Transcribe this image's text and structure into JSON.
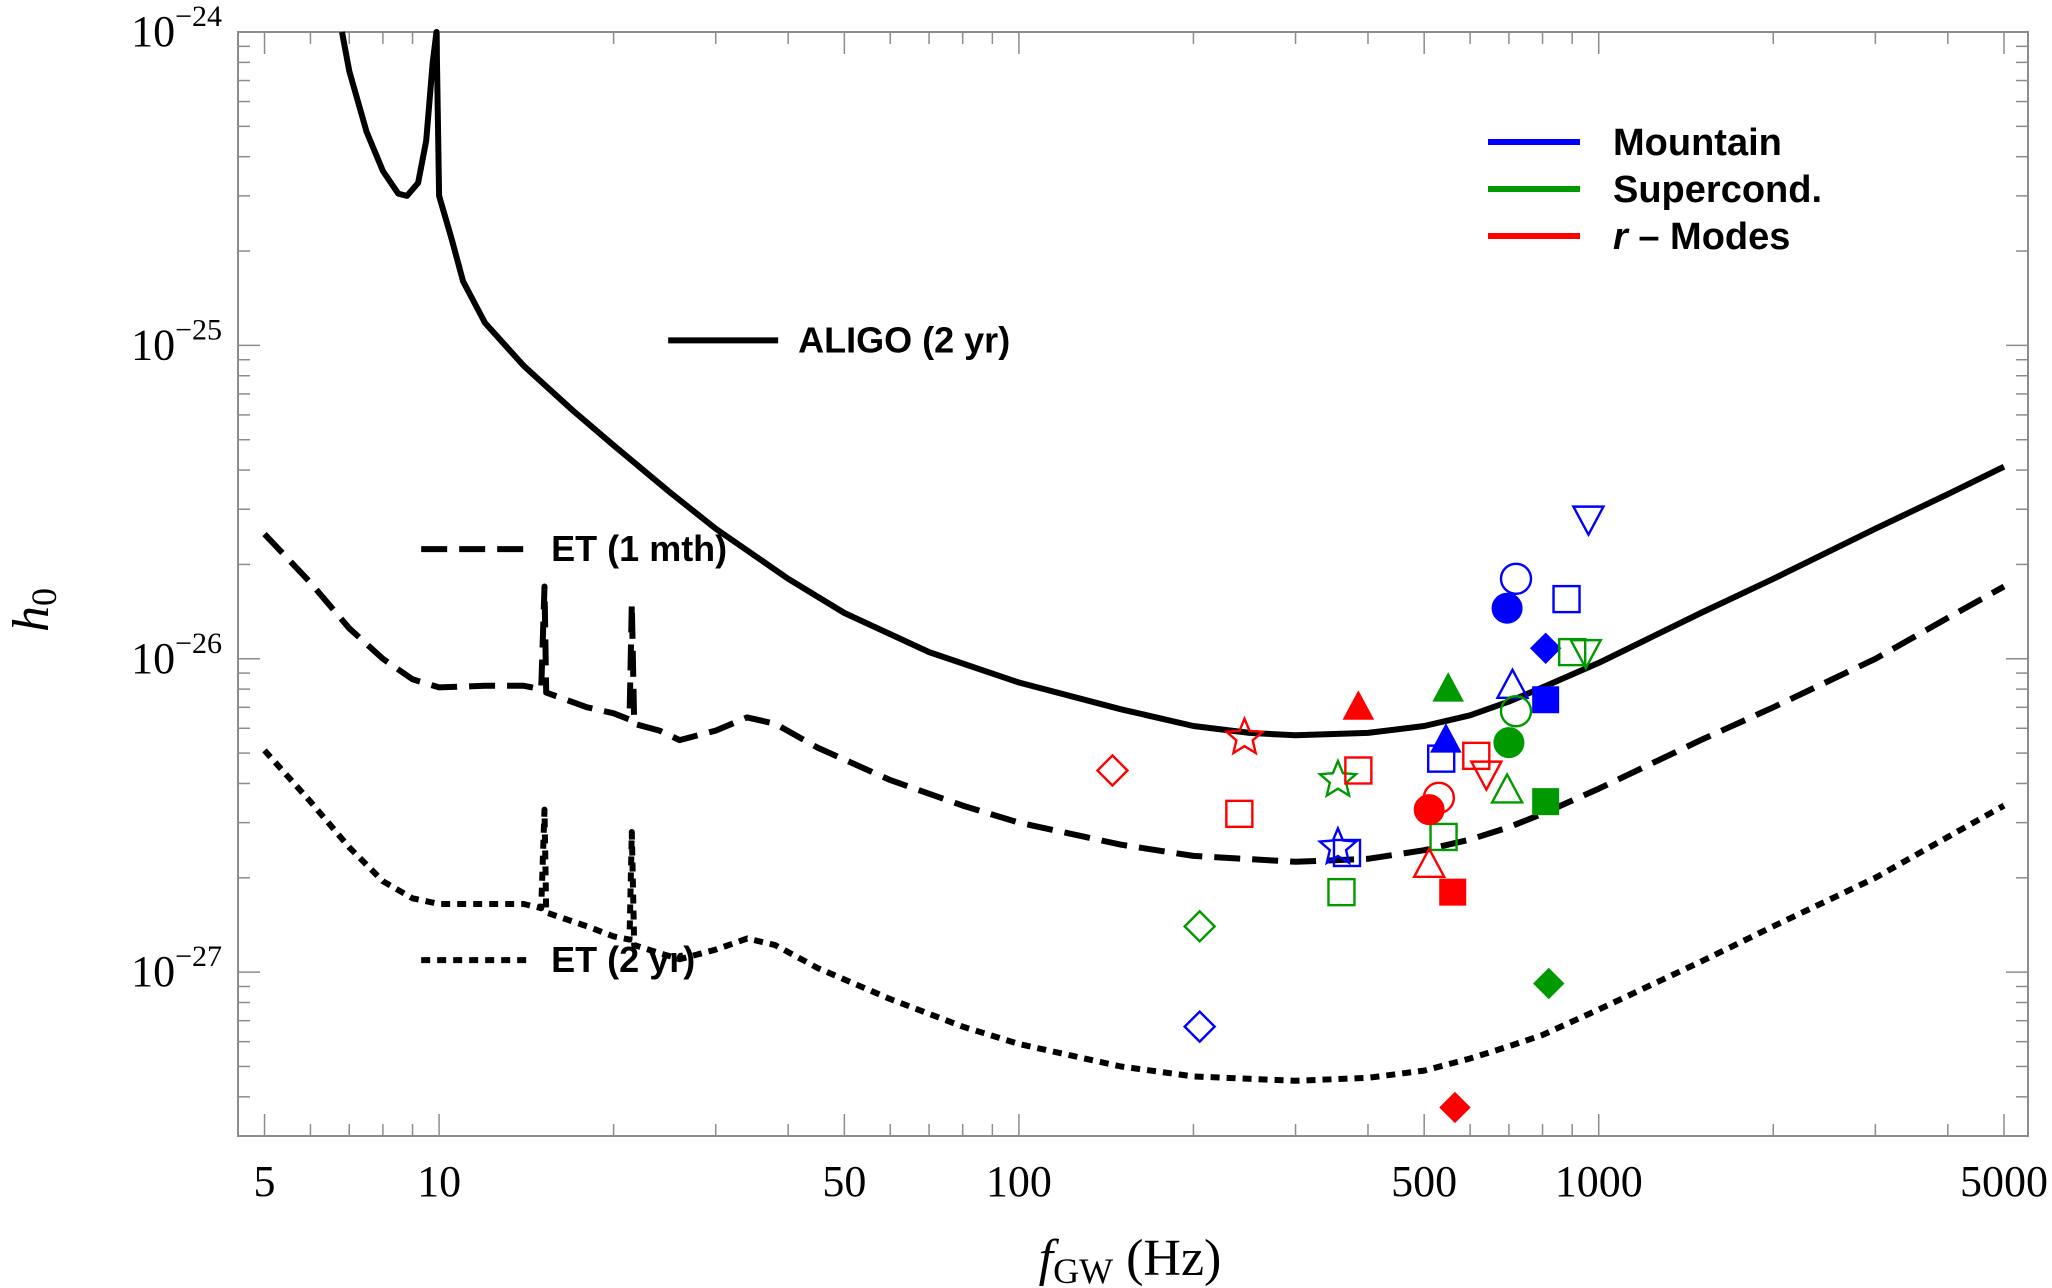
{
  "chart_data": {
    "type": "scatter",
    "title": "",
    "xlabel": "f",
    "xlabel_subscript": "GW",
    "xlabel_unit": " (Hz)",
    "ylabel": "h",
    "ylabel_subscript": "0",
    "xscale": "log",
    "yscale": "log",
    "xlim": [
      4.5,
      5500
    ],
    "ylim": [
      3e-28,
      1e-24
    ],
    "x_ticks": [
      {
        "value": 5,
        "label": "5"
      },
      {
        "value": 10,
        "label": "10"
      },
      {
        "value": 50,
        "label": "50"
      },
      {
        "value": 100,
        "label": "100"
      },
      {
        "value": 500,
        "label": "500"
      },
      {
        "value": 1000,
        "label": "1000"
      },
      {
        "value": 5000,
        "label": "5000"
      }
    ],
    "y_ticks": [
      {
        "value": 1e-27,
        "mantissa": "10",
        "exponent": "−27"
      },
      {
        "value": 1e-26,
        "mantissa": "10",
        "exponent": "−26"
      },
      {
        "value": 1e-25,
        "mantissa": "10",
        "exponent": "−25"
      },
      {
        "value": 1e-24,
        "mantissa": "10",
        "exponent": "−24"
      }
    ],
    "colors": {
      "mountain": "#0000ff",
      "supercond": "#009900",
      "rmodes": "#ff0000",
      "curve": "#000000"
    },
    "legend": {
      "position": "top-right",
      "items": [
        {
          "label": "Mountain",
          "color": "#0000ff"
        },
        {
          "label": "Supercond.",
          "color": "#009900"
        },
        {
          "label": "r",
          "suffix": " – Modes",
          "color": "#ff0000"
        }
      ]
    },
    "curve_labels": [
      {
        "id": "aligo",
        "text": "ALIGO (2 yr)",
        "x": 40,
        "y": 9.5e-26
      },
      {
        "id": "et1",
        "text": "ET (1 mth)",
        "x": 15,
        "y": 2.05e-26
      },
      {
        "id": "et2",
        "text": "ET (2 yr)",
        "x": 15,
        "y": 1e-27
      }
    ],
    "series": [
      {
        "name": "ALIGO (2 yr)",
        "style": "solid",
        "points": [
          [
            6.8,
            1e-24
          ],
          [
            7,
            7.5e-25
          ],
          [
            7.5,
            4.8e-25
          ],
          [
            8,
            3.6e-25
          ],
          [
            8.5,
            3.05e-25
          ],
          [
            8.8,
            3e-25
          ],
          [
            9.2,
            3.3e-25
          ],
          [
            9.5,
            4.5e-25
          ],
          [
            9.75,
            8e-25
          ],
          [
            9.9,
            1e-24
          ],
          [
            10,
            3e-25
          ],
          [
            10.5,
            2.2e-25
          ],
          [
            11,
            1.6e-25
          ],
          [
            12,
            1.18e-25
          ],
          [
            14,
            8.6e-26
          ],
          [
            17,
            6.2e-26
          ],
          [
            20,
            4.8e-26
          ],
          [
            25,
            3.4e-26
          ],
          [
            30,
            2.6e-26
          ],
          [
            40,
            1.8e-26
          ],
          [
            50,
            1.4e-26
          ],
          [
            70,
            1.05e-26
          ],
          [
            100,
            8.4e-27
          ],
          [
            150,
            6.9e-27
          ],
          [
            200,
            6.1e-27
          ],
          [
            250,
            5.8e-27
          ],
          [
            300,
            5.7e-27
          ],
          [
            400,
            5.8e-27
          ],
          [
            500,
            6.1e-27
          ],
          [
            600,
            6.6e-27
          ],
          [
            700,
            7.3e-27
          ],
          [
            800,
            8.1e-27
          ],
          [
            1000,
            9.7e-27
          ],
          [
            1500,
            1.4e-26
          ],
          [
            2000,
            1.8e-26
          ],
          [
            3000,
            2.6e-26
          ],
          [
            4000,
            3.35e-26
          ],
          [
            5000,
            4.1e-26
          ]
        ]
      },
      {
        "name": "ET (1 mth)",
        "style": "dashed",
        "points": [
          [
            5,
            2.5e-26
          ],
          [
            6,
            1.75e-26
          ],
          [
            7,
            1.25e-26
          ],
          [
            8,
            1e-26
          ],
          [
            9,
            8.6e-27
          ],
          [
            10,
            8.1e-27
          ],
          [
            12,
            8.2e-27
          ],
          [
            14,
            8.2e-27
          ],
          [
            15,
            8e-27
          ],
          [
            15.2,
            1.7e-26
          ],
          [
            15.3,
            7.8e-27
          ],
          [
            18,
            7e-27
          ],
          [
            20,
            6.7e-27
          ],
          [
            21.3,
            6.4e-27
          ],
          [
            21.5,
            1.5e-26
          ],
          [
            21.7,
            6.2e-27
          ],
          [
            24,
            5.9e-27
          ],
          [
            26,
            5.5e-27
          ],
          [
            30,
            5.9e-27
          ],
          [
            34,
            6.5e-27
          ],
          [
            38,
            6.2e-27
          ],
          [
            45,
            5.2e-27
          ],
          [
            60,
            4.1e-27
          ],
          [
            80,
            3.4e-27
          ],
          [
            100,
            3e-27
          ],
          [
            150,
            2.55e-27
          ],
          [
            200,
            2.35e-27
          ],
          [
            300,
            2.25e-27
          ],
          [
            400,
            2.3e-27
          ],
          [
            500,
            2.45e-27
          ],
          [
            600,
            2.65e-27
          ],
          [
            700,
            2.9e-27
          ],
          [
            800,
            3.2e-27
          ],
          [
            1000,
            3.85e-27
          ],
          [
            1500,
            5.5e-27
          ],
          [
            2000,
            7e-27
          ],
          [
            3000,
            1e-26
          ],
          [
            4000,
            1.35e-26
          ],
          [
            5000,
            1.7e-26
          ]
        ]
      },
      {
        "name": "ET (2 yr)",
        "style": "dotted",
        "points": [
          [
            5,
            5.1e-27
          ],
          [
            6,
            3.5e-27
          ],
          [
            7,
            2.5e-27
          ],
          [
            8,
            1.95e-27
          ],
          [
            9,
            1.72e-27
          ],
          [
            10,
            1.65e-27
          ],
          [
            12,
            1.65e-27
          ],
          [
            14,
            1.65e-27
          ],
          [
            15,
            1.6e-27
          ],
          [
            15.2,
            3.3e-27
          ],
          [
            15.3,
            1.55e-27
          ],
          [
            18,
            1.4e-27
          ],
          [
            20,
            1.3e-27
          ],
          [
            21.3,
            1.27e-27
          ],
          [
            21.5,
            2.8e-27
          ],
          [
            21.7,
            1.22e-27
          ],
          [
            24,
            1.15e-27
          ],
          [
            26,
            1.1e-27
          ],
          [
            30,
            1.18e-27
          ],
          [
            34,
            1.28e-27
          ],
          [
            38,
            1.22e-27
          ],
          [
            45,
            1.03e-27
          ],
          [
            60,
            8.2e-28
          ],
          [
            80,
            6.7e-28
          ],
          [
            100,
            5.9e-28
          ],
          [
            150,
            5e-28
          ],
          [
            200,
            4.65e-28
          ],
          [
            300,
            4.5e-28
          ],
          [
            400,
            4.6e-28
          ],
          [
            500,
            4.85e-28
          ],
          [
            600,
            5.3e-28
          ],
          [
            700,
            5.8e-28
          ],
          [
            800,
            6.3e-28
          ],
          [
            1000,
            7.6e-28
          ],
          [
            1500,
            1.08e-27
          ],
          [
            2000,
            1.4e-27
          ],
          [
            3000,
            2e-27
          ],
          [
            4000,
            2.7e-27
          ],
          [
            5000,
            3.4e-27
          ]
        ]
      }
    ],
    "markers": [
      {
        "group": "mountain",
        "shape": "circle",
        "filled": false,
        "x": 720,
        "y": 1.8e-26
      },
      {
        "group": "mountain",
        "shape": "circle",
        "filled": true,
        "x": 695,
        "y": 1.45e-26
      },
      {
        "group": "mountain",
        "shape": "square",
        "filled": false,
        "x": 880,
        "y": 1.55e-26
      },
      {
        "group": "mountain",
        "shape": "tri-down",
        "filled": false,
        "x": 960,
        "y": 2.8e-26
      },
      {
        "group": "mountain",
        "shape": "diamond",
        "filled": true,
        "x": 810,
        "y": 1.08e-26
      },
      {
        "group": "mountain",
        "shape": "tri-up",
        "filled": false,
        "x": 710,
        "y": 8.2e-27
      },
      {
        "group": "mountain",
        "shape": "square",
        "filled": true,
        "x": 810,
        "y": 7.4e-27
      },
      {
        "group": "mountain",
        "shape": "tri-up",
        "filled": true,
        "x": 545,
        "y": 5.5e-27
      },
      {
        "group": "mountain",
        "shape": "square",
        "filled": false,
        "x": 535,
        "y": 4.8e-27
      },
      {
        "group": "mountain",
        "shape": "star",
        "filled": false,
        "x": 355,
        "y": 2.5e-27
      },
      {
        "group": "mountain",
        "shape": "square",
        "filled": false,
        "x": 368,
        "y": 2.4e-27
      },
      {
        "group": "mountain",
        "shape": "diamond",
        "filled": false,
        "x": 205,
        "y": 6.7e-28
      },
      {
        "group": "supercond",
        "shape": "tri-up",
        "filled": true,
        "x": 550,
        "y": 8e-27
      },
      {
        "group": "supercond",
        "shape": "circle",
        "filled": false,
        "x": 720,
        "y": 6.8e-27
      },
      {
        "group": "supercond",
        "shape": "circle",
        "filled": true,
        "x": 700,
        "y": 5.4e-27
      },
      {
        "group": "supercond",
        "shape": "tri-up",
        "filled": false,
        "x": 695,
        "y": 3.8e-27
      },
      {
        "group": "supercond",
        "shape": "square",
        "filled": true,
        "x": 810,
        "y": 3.5e-27
      },
      {
        "group": "supercond",
        "shape": "square",
        "filled": false,
        "x": 900,
        "y": 1.05e-26
      },
      {
        "group": "supercond",
        "shape": "tri-down",
        "filled": false,
        "x": 950,
        "y": 1.05e-26
      },
      {
        "group": "supercond",
        "shape": "star",
        "filled": false,
        "x": 355,
        "y": 4.1e-27
      },
      {
        "group": "supercond",
        "shape": "square",
        "filled": false,
        "x": 540,
        "y": 2.7e-27
      },
      {
        "group": "supercond",
        "shape": "square",
        "filled": false,
        "x": 360,
        "y": 1.8e-27
      },
      {
        "group": "supercond",
        "shape": "diamond",
        "filled": false,
        "x": 205,
        "y": 1.4e-27
      },
      {
        "group": "supercond",
        "shape": "diamond",
        "filled": true,
        "x": 820,
        "y": 9.2e-28
      },
      {
        "group": "rmodes",
        "shape": "tri-up",
        "filled": true,
        "x": 385,
        "y": 7e-27
      },
      {
        "group": "rmodes",
        "shape": "star",
        "filled": false,
        "x": 245,
        "y": 5.6e-27
      },
      {
        "group": "rmodes",
        "shape": "square",
        "filled": false,
        "x": 385,
        "y": 4.4e-27
      },
      {
        "group": "rmodes",
        "shape": "diamond",
        "filled": false,
        "x": 145,
        "y": 4.4e-27
      },
      {
        "group": "rmodes",
        "shape": "square",
        "filled": false,
        "x": 615,
        "y": 4.9e-27
      },
      {
        "group": "rmodes",
        "shape": "tri-down",
        "filled": false,
        "x": 640,
        "y": 4.3e-27
      },
      {
        "group": "rmodes",
        "shape": "circle",
        "filled": false,
        "x": 530,
        "y": 3.6e-27
      },
      {
        "group": "rmodes",
        "shape": "circle",
        "filled": true,
        "x": 510,
        "y": 3.3e-27
      },
      {
        "group": "rmodes",
        "shape": "square",
        "filled": false,
        "x": 240,
        "y": 3.2e-27
      },
      {
        "group": "rmodes",
        "shape": "tri-up",
        "filled": false,
        "x": 510,
        "y": 2.2e-27
      },
      {
        "group": "rmodes",
        "shape": "square",
        "filled": true,
        "x": 560,
        "y": 1.8e-27
      },
      {
        "group": "rmodes",
        "shape": "diamond",
        "filled": true,
        "x": 565,
        "y": 3.7e-28
      }
    ]
  }
}
